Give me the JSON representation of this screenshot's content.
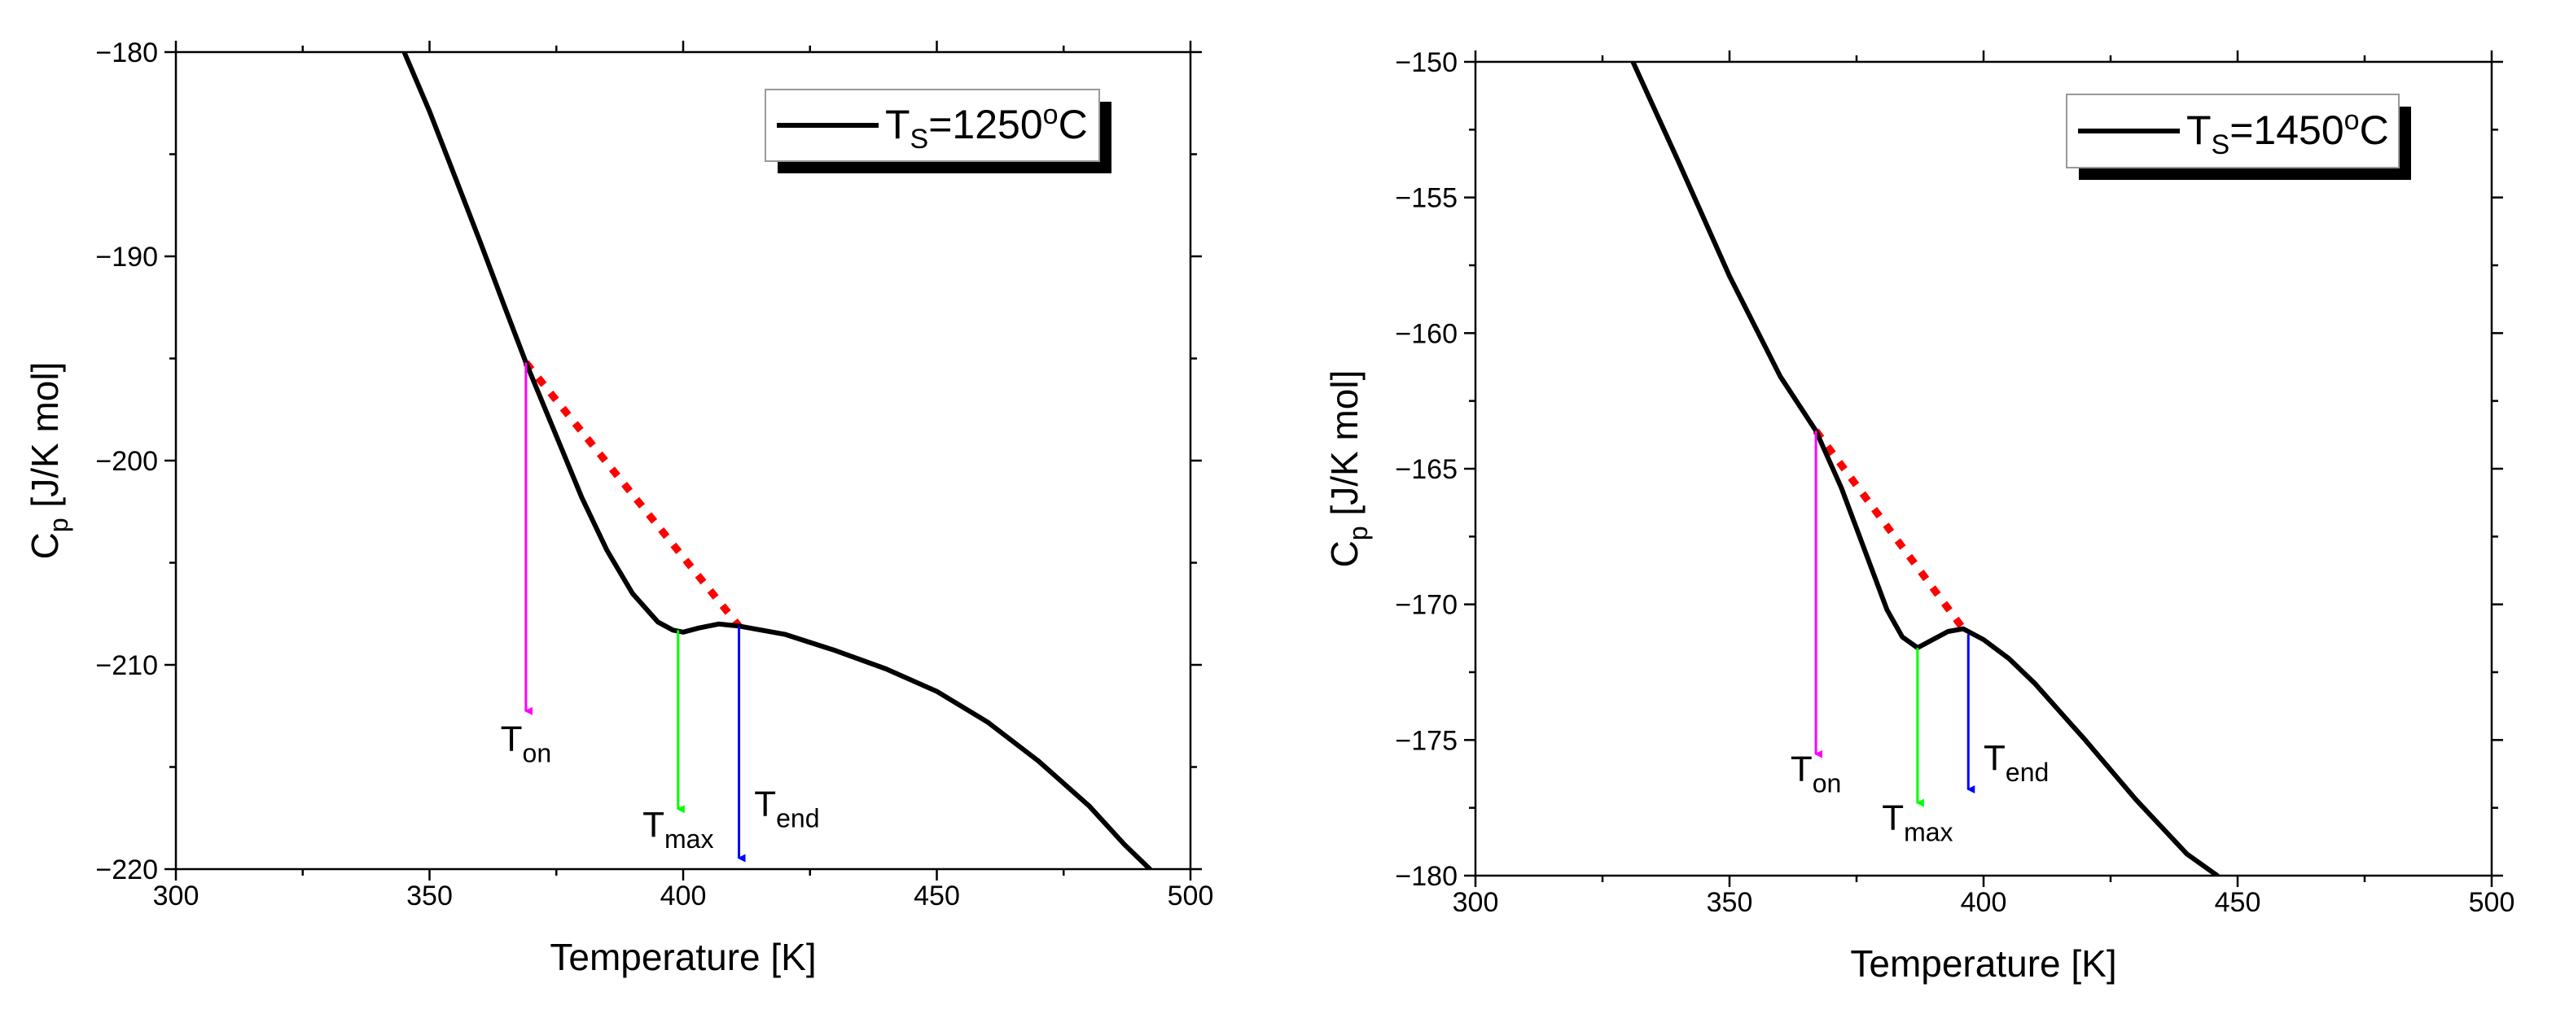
{
  "chart_data": [
    {
      "type": "line",
      "xlabel": "Temperature [K]",
      "ylabel": {
        "main": "C",
        "sub": "p",
        "rest": " [J/K mol]"
      },
      "xlim": [
        300,
        500
      ],
      "ylim": [
        -220,
        -180
      ],
      "xticks": [
        300,
        350,
        400,
        450,
        500
      ],
      "yticks": [
        -220,
        -210,
        -200,
        -190,
        -180
      ],
      "grid": false,
      "legend": {
        "placement": "top-right",
        "label": {
          "main": "T",
          "sub": "S",
          "rest": "=1250",
          "sup": "o",
          "end": "C"
        }
      },
      "series": [
        {
          "name": "TS=1250oC",
          "color": "#000000",
          "x": [
            345,
            350,
            355,
            360,
            365,
            369,
            375,
            380,
            385,
            390,
            395,
            398,
            400,
            403,
            407,
            411,
            420,
            430,
            440,
            450,
            460,
            470,
            480,
            487,
            492
          ],
          "y": [
            -180,
            -182.9,
            -186.1,
            -189.3,
            -192.6,
            -195.2,
            -198.8,
            -201.8,
            -204.4,
            -206.5,
            -207.9,
            -208.3,
            -208.4,
            -208.2,
            -208.0,
            -208.1,
            -208.5,
            -209.3,
            -210.2,
            -211.3,
            -212.8,
            -214.7,
            -216.9,
            -218.8,
            -220
          ]
        }
      ],
      "baseline": {
        "color": "#ff0000",
        "style": "dotted",
        "x": [
          369,
          411
        ],
        "y": [
          -195.2,
          -208.1
        ]
      },
      "annotations": [
        {
          "label": {
            "main": "T",
            "sub": "on"
          },
          "x": 369,
          "y_from": -195.2,
          "y_to": -212.5,
          "color": "#ff00ff",
          "label_x": 369,
          "label_y": -214.2,
          "anchor": "middle"
        },
        {
          "label": {
            "main": "T",
            "sub": "max"
          },
          "x": 399,
          "y_from": -208.3,
          "y_to": -217.3,
          "color": "#00ff00",
          "label_x": 399,
          "label_y": -218.4,
          "anchor": "middle"
        },
        {
          "label": {
            "main": "T",
            "sub": "end"
          },
          "x": 411,
          "y_from": -208.1,
          "y_to": -219.7,
          "color": "#0000ff",
          "label_x": 414,
          "label_y": -217.4,
          "anchor": "start"
        }
      ]
    },
    {
      "type": "line",
      "xlabel": "Temperature [K]",
      "ylabel": {
        "main": "C",
        "sub": "p",
        "rest": " [J/K mol]"
      },
      "xlim": [
        300,
        500
      ],
      "ylim": [
        -180,
        -150
      ],
      "xticks": [
        300,
        350,
        400,
        450,
        500
      ],
      "yticks": [
        -180,
        -175,
        -170,
        -165,
        -160,
        -155,
        -150
      ],
      "grid": false,
      "legend": {
        "placement": "top-right",
        "label": {
          "main": "T",
          "sub": "S",
          "rest": "=1450",
          "sup": "o",
          "end": "C"
        }
      },
      "series": [
        {
          "name": "TS=1450oC",
          "color": "#000000",
          "x": [
            331,
            340,
            350,
            360,
            367,
            372,
            377,
            381,
            384,
            387,
            390,
            393,
            396,
            400,
            405,
            410,
            420,
            430,
            440,
            446
          ],
          "y": [
            -150,
            -153.7,
            -157.9,
            -161.6,
            -163.6,
            -165.7,
            -168.2,
            -170.2,
            -171.2,
            -171.6,
            -171.3,
            -171.0,
            -170.9,
            -171.3,
            -172.0,
            -172.9,
            -175.0,
            -177.2,
            -179.2,
            -180
          ]
        }
      ],
      "baseline": {
        "color": "#ff0000",
        "style": "dotted",
        "x": [
          367,
          396
        ],
        "y": [
          -163.6,
          -170.9
        ]
      },
      "annotations": [
        {
          "label": {
            "main": "T",
            "sub": "on"
          },
          "x": 367,
          "y_from": -163.6,
          "y_to": -175.7,
          "color": "#ff00ff",
          "label_x": 367,
          "label_y": -176.5,
          "anchor": "middle"
        },
        {
          "label": {
            "main": "T",
            "sub": "max"
          },
          "x": 387,
          "y_from": -171.6,
          "y_to": -177.5,
          "color": "#00ff00",
          "label_x": 387,
          "label_y": -178.3,
          "anchor": "middle"
        },
        {
          "label": {
            "main": "T",
            "sub": "end"
          },
          "x": 397,
          "y_from": -171.1,
          "y_to": -177,
          "color": "#0000ff",
          "label_x": 400,
          "label_y": -176.1,
          "anchor": "start"
        }
      ]
    }
  ]
}
